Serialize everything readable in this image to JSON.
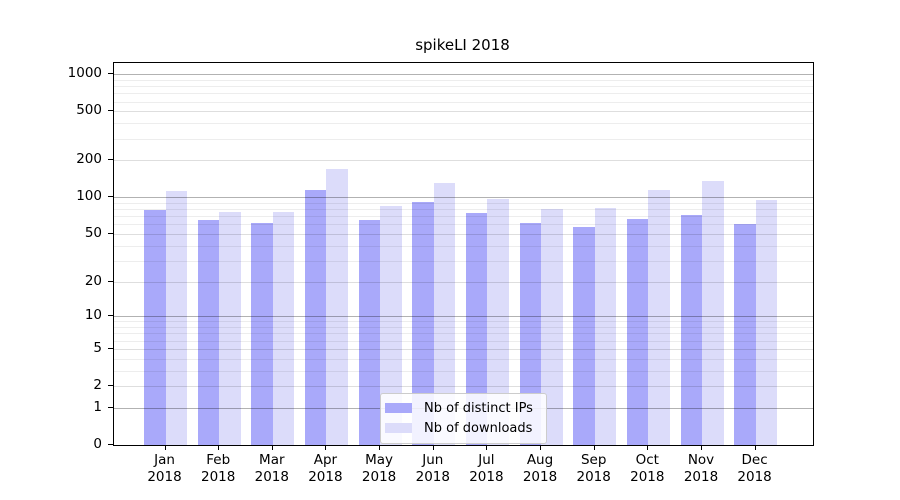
{
  "chart_data": {
    "type": "bar",
    "title": "spikeLI 2018",
    "categories": [
      "Jan",
      "Feb",
      "Mar",
      "Apr",
      "May",
      "Jun",
      "Jul",
      "Aug",
      "Sep",
      "Oct",
      "Nov",
      "Dec"
    ],
    "year_label": "2018",
    "series": [
      {
        "name": "Nb of distinct IPs",
        "color": "#a9a9fa",
        "values": [
          79,
          65,
          62,
          114,
          65,
          92,
          75,
          62,
          57,
          67,
          72,
          61
        ]
      },
      {
        "name": "Nb of downloads",
        "color": "#dcdcfa",
        "values": [
          113,
          76,
          76,
          172,
          85,
          131,
          97,
          80,
          82,
          114,
          136,
          95
        ]
      }
    ],
    "yscale": "log1p",
    "y_ticks": [
      0,
      1,
      2,
      5,
      10,
      20,
      50,
      100,
      200,
      500,
      1000
    ],
    "ylim": [
      0,
      1000
    ],
    "xlabel": "",
    "ylabel": "",
    "grid": true,
    "legend_position": "lower-center-inside"
  },
  "colors": {
    "bar_distinct_ips": "#a9a9fa",
    "bar_downloads": "#dcdcfa",
    "grid_major": "rgba(0,0,0,0.30)",
    "grid_labeled": "rgba(0,0,0,0.13)",
    "grid_minor": "rgba(0,0,0,0.07)",
    "axis": "#000000",
    "background": "#ffffff"
  }
}
